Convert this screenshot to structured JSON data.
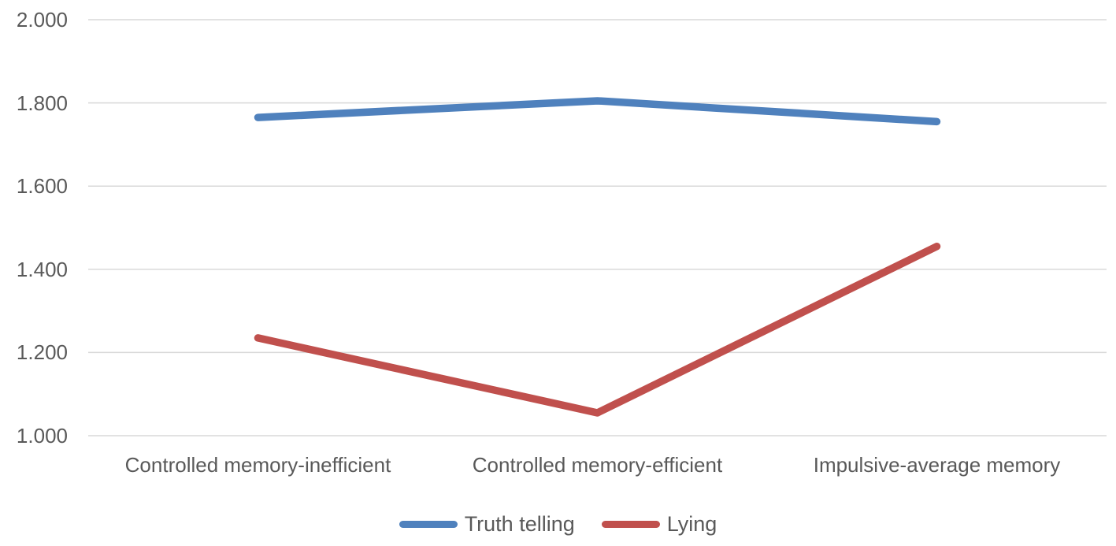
{
  "chart_data": {
    "type": "line",
    "title": "",
    "xlabel": "",
    "ylabel": "",
    "categories": [
      "Controlled memory-inefficient",
      "Controlled memory-efficient",
      "Impulsive-average memory"
    ],
    "series": [
      {
        "name": "Truth telling",
        "color": "#4F81BD",
        "values": [
          1.765,
          1.805,
          1.755
        ]
      },
      {
        "name": "Lying",
        "color": "#C0504D",
        "values": [
          1.235,
          1.055,
          1.455
        ]
      }
    ],
    "y_ticks": [
      {
        "label": "2.000",
        "value": 2.0
      },
      {
        "label": "1.800",
        "value": 1.8
      },
      {
        "label": "1.600",
        "value": 1.6
      },
      {
        "label": "1.400",
        "value": 1.4
      },
      {
        "label": "1.200",
        "value": 1.2
      },
      {
        "label": "1.000",
        "value": 1.0
      }
    ],
    "ylim": [
      1.0,
      2.0
    ],
    "grid": "horizontal",
    "gridline_color": "#D9D9D9",
    "text_color": "#595959",
    "legend_position": "bottom"
  }
}
